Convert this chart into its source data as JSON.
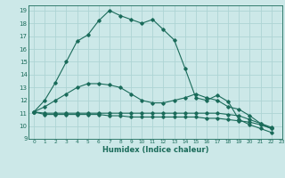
{
  "title": "",
  "xlabel": "Humidex (Indice chaleur)",
  "background_color": "#cce8e8",
  "grid_color": "#aed4d4",
  "line_color": "#1a6b5a",
  "xlim": [
    -0.5,
    23
  ],
  "ylim": [
    9,
    19.4
  ],
  "yticks": [
    9,
    10,
    11,
    12,
    13,
    14,
    15,
    16,
    17,
    18,
    19
  ],
  "xticks": [
    0,
    1,
    2,
    3,
    4,
    5,
    6,
    7,
    8,
    9,
    10,
    11,
    12,
    13,
    14,
    15,
    16,
    17,
    18,
    19,
    20,
    21,
    22,
    23
  ],
  "series": [
    {
      "x": [
        0,
        1,
        2,
        3,
        4,
        5,
        6,
        7,
        8,
        9,
        10,
        11,
        12,
        13,
        14,
        15,
        16,
        17,
        18,
        19,
        20,
        21,
        22
      ],
      "y": [
        11.1,
        12.0,
        13.4,
        15.0,
        16.6,
        17.1,
        18.2,
        19.0,
        18.6,
        18.3,
        18.0,
        18.3,
        17.5,
        16.7,
        14.5,
        12.2,
        12.0,
        12.4,
        11.9,
        10.5,
        10.1,
        9.8,
        9.5
      ]
    },
    {
      "x": [
        0,
        1,
        2,
        3,
        4,
        5,
        6,
        7,
        8,
        9,
        10,
        11,
        12,
        13,
        14,
        15,
        16,
        17,
        18,
        19,
        20,
        21,
        22
      ],
      "y": [
        11.1,
        11.5,
        12.0,
        12.5,
        13.0,
        13.3,
        13.3,
        13.2,
        13.0,
        12.5,
        12.0,
        11.8,
        11.8,
        12.0,
        12.2,
        12.5,
        12.2,
        12.0,
        11.5,
        11.3,
        10.8,
        10.2,
        9.9
      ]
    },
    {
      "x": [
        0,
        1,
        2,
        3,
        4,
        5,
        6,
        7,
        8,
        9,
        10,
        11,
        12,
        13,
        14,
        15,
        16,
        17,
        18,
        19,
        20,
        21,
        22
      ],
      "y": [
        11.1,
        10.9,
        10.9,
        10.9,
        10.9,
        10.9,
        10.9,
        10.8,
        10.8,
        10.7,
        10.7,
        10.7,
        10.7,
        10.7,
        10.7,
        10.7,
        10.6,
        10.6,
        10.5,
        10.4,
        10.3,
        10.1,
        9.8
      ]
    },
    {
      "x": [
        0,
        1,
        2,
        3,
        4,
        5,
        6,
        7,
        8,
        9,
        10,
        11,
        12,
        13,
        14,
        15,
        16,
        17,
        18,
        19,
        20,
        21,
        22
      ],
      "y": [
        11.1,
        11.0,
        11.0,
        11.0,
        11.0,
        11.0,
        11.0,
        11.0,
        11.0,
        11.0,
        11.0,
        11.0,
        11.0,
        11.0,
        11.0,
        11.0,
        11.0,
        11.0,
        10.9,
        10.8,
        10.5,
        10.2,
        9.8
      ]
    }
  ]
}
